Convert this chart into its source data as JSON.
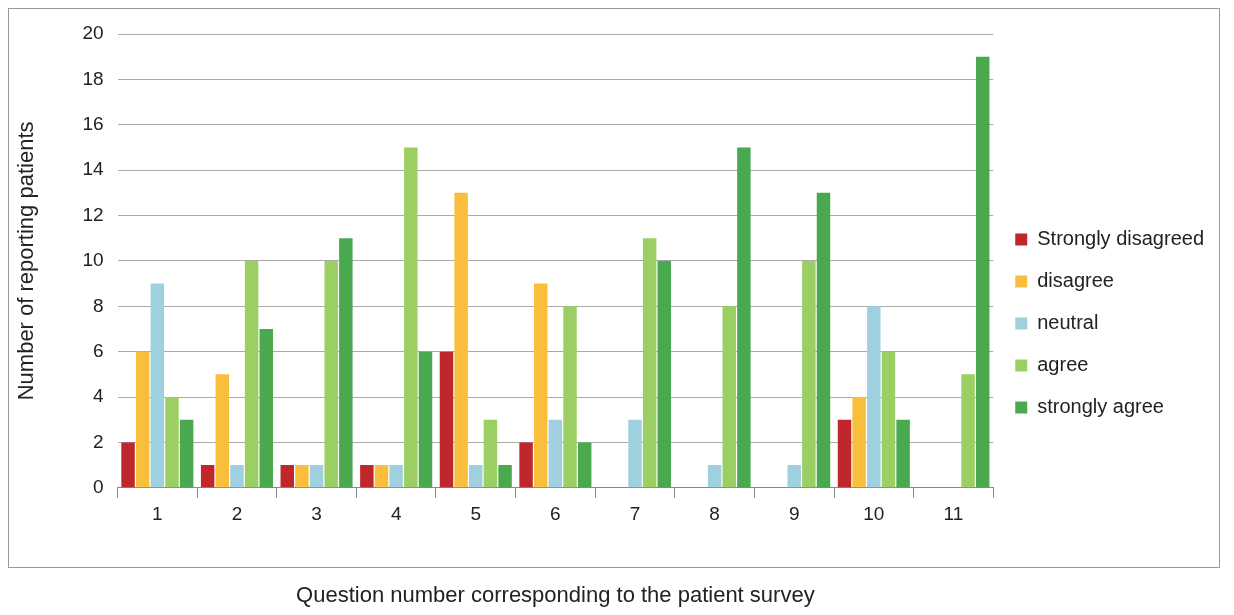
{
  "chart_data": {
    "type": "bar",
    "xlabel": "Question number corresponding to the patient survey",
    "ylabel": "Number of reporting patients",
    "categories": [
      "1",
      "2",
      "3",
      "4",
      "5",
      "6",
      "7",
      "8",
      "9",
      "10",
      "11"
    ],
    "series": [
      {
        "name": "Strongly disagreed",
        "color": "#c0272d",
        "values": [
          2,
          1,
          1,
          1,
          6,
          2,
          0,
          0,
          0,
          3,
          0
        ]
      },
      {
        "name": "disagree",
        "color": "#f9bf3c",
        "values": [
          6,
          5,
          1,
          1,
          13,
          9,
          0,
          0,
          0,
          4,
          0
        ]
      },
      {
        "name": "neutral",
        "color": "#9fd0e0",
        "values": [
          9,
          1,
          1,
          1,
          1,
          3,
          3,
          1,
          1,
          8,
          0
        ]
      },
      {
        "name": "agree",
        "color": "#9bcf63",
        "values": [
          4,
          10,
          10,
          15,
          3,
          8,
          11,
          8,
          10,
          6,
          5
        ]
      },
      {
        "name": "strongly agree",
        "color": "#4aa84e",
        "values": [
          3,
          7,
          11,
          6,
          1,
          2,
          10,
          15,
          13,
          3,
          19
        ]
      }
    ],
    "ylim": [
      0,
      20
    ],
    "yticks": [
      0,
      2,
      4,
      6,
      8,
      10,
      12,
      14,
      16,
      18,
      20
    ],
    "grid": "y",
    "legend": "right"
  }
}
